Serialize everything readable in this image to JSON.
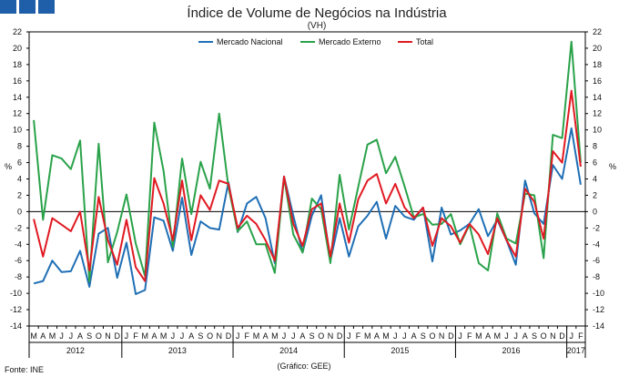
{
  "chart_data": {
    "type": "line",
    "title": "Índice de Volume de Negócios na Indústria",
    "subtitle": "(VH)",
    "ylabel": "%",
    "ylim": [
      -14,
      22
    ],
    "yticks": [
      -14,
      -12,
      -10,
      -8,
      -6,
      -4,
      -2,
      0,
      2,
      4,
      6,
      8,
      10,
      12,
      14,
      16,
      18,
      20,
      22
    ],
    "month_labels": [
      "M",
      "A",
      "M",
      "J",
      "J",
      "A",
      "S",
      "O",
      "N",
      "D",
      "J",
      "F",
      "M",
      "A",
      "M",
      "J",
      "J",
      "A",
      "S",
      "O",
      "N",
      "D",
      "J",
      "F",
      "M",
      "A",
      "M",
      "J",
      "J",
      "A",
      "S",
      "O",
      "N",
      "D",
      "J",
      "F",
      "M",
      "A",
      "M",
      "J",
      "J",
      "A",
      "S",
      "O",
      "N",
      "D",
      "J",
      "F",
      "M",
      "A",
      "M",
      "J",
      "J",
      "A",
      "S",
      "O",
      "N",
      "D",
      "J",
      "F"
    ],
    "years": [
      {
        "label": "2012",
        "start": 0,
        "count": 10
      },
      {
        "label": "2013",
        "start": 10,
        "count": 12
      },
      {
        "label": "2014",
        "start": 22,
        "count": 12
      },
      {
        "label": "2015",
        "start": 34,
        "count": 12
      },
      {
        "label": "2016",
        "start": 46,
        "count": 12
      },
      {
        "label": "2017",
        "start": 58,
        "count": 2
      }
    ],
    "series": [
      {
        "name": "Mercado Nacional",
        "color": "#1f6fb5",
        "values": [
          -8.8,
          -8.5,
          -6.0,
          -7.4,
          -7.3,
          -4.8,
          -9.2,
          -2.7,
          -2.0,
          -8.1,
          -3.8,
          -10.1,
          -9.6,
          -0.7,
          -1.1,
          -4.8,
          1.7,
          -5.3,
          -1.2,
          -2.0,
          -2.2,
          3.6,
          -2.5,
          1.0,
          1.8,
          -0.8,
          -6.3,
          4.3,
          -0.5,
          -5.0,
          -0.5,
          2.0,
          -6.0,
          -0.8,
          -5.5,
          -1.8,
          -0.5,
          1.2,
          -3.3,
          0.7,
          -0.6,
          -1.0,
          0.5,
          -6.1,
          0.5,
          -2.8,
          -2.3,
          -1.5,
          0.3,
          -3.0,
          -1.0,
          -3.5,
          -6.5,
          3.8,
          -0.2,
          -1.5,
          5.7,
          4.0,
          10.2,
          3.3
        ]
      },
      {
        "name": "Mercado Externo",
        "color": "#2aa24a",
        "values": [
          11.2,
          -1.0,
          6.9,
          6.5,
          5.2,
          8.7,
          -8.5,
          8.3,
          -6.2,
          -2.5,
          2.1,
          -3.9,
          -7.9,
          10.9,
          5.0,
          -4.3,
          6.5,
          -0.3,
          6.1,
          2.8,
          12.0,
          3.0,
          -2.4,
          -1.2,
          -4.0,
          -4.0,
          -7.5,
          4.2,
          -2.8,
          -5.0,
          1.6,
          0.3,
          -6.3,
          4.5,
          -2.2,
          3.0,
          8.2,
          8.8,
          4.7,
          6.7,
          3.1,
          -0.7,
          -0.3,
          -1.6,
          -1.5,
          -0.3,
          -4.0,
          -1.6,
          -6.3,
          -7.2,
          -0.2,
          -3.3,
          -3.9,
          2.2,
          2.0,
          -5.7,
          9.4,
          9.0,
          20.8,
          6.0
        ]
      },
      {
        "name": "Total",
        "color": "#e01a22",
        "values": [
          -0.9,
          -5.5,
          -0.8,
          -1.6,
          -2.4,
          0.0,
          -7.2,
          1.8,
          -3.5,
          -6.5,
          -1.0,
          -6.8,
          -8.5,
          4.1,
          1.0,
          -3.5,
          3.8,
          -3.5,
          2.0,
          0.2,
          3.8,
          3.4,
          -2.0,
          -0.5,
          -1.5,
          -3.5,
          -6.0,
          4.3,
          -1.5,
          -4.2,
          0.3,
          1.0,
          -5.5,
          1.0,
          -3.8,
          1.5,
          3.8,
          4.6,
          1.0,
          3.4,
          0.5,
          -0.8,
          0.5,
          -4.2,
          -0.8,
          -1.8,
          -3.8,
          -1.5,
          -2.8,
          -5.2,
          -0.8,
          -3.5,
          -5.5,
          2.8,
          1.2,
          -3.3,
          7.4,
          6.0,
          14.8,
          5.5
        ]
      }
    ],
    "source": "Fonte: INE",
    "note": "(Gráfico: GEE)"
  }
}
